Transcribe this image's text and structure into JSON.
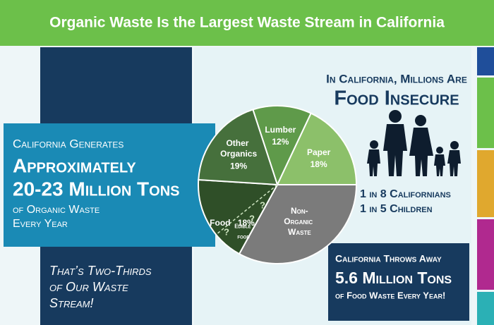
{
  "header": {
    "title": "Organic Waste Is the Largest Waste Stream in California"
  },
  "left_panel": {
    "lines": [
      "California Generates",
      "Approximately",
      "20-23 Million Tons",
      "of Organic Waste",
      "Every Year"
    ]
  },
  "bottom_left": {
    "lines": [
      "That’s Two-Thirds",
      "of Our Waste",
      "Stream!"
    ]
  },
  "right_panel": {
    "lines": [
      "In California, Millions Are",
      "Food Insecure"
    ],
    "stats": [
      "1 in 8 Californians",
      "1 in 5 Children"
    ]
  },
  "bottom_right": {
    "lines": [
      "California Throws Away",
      "5.6 Million Tons",
      "of Food Waste Every Year!"
    ]
  },
  "chart_data": {
    "type": "pie",
    "categories": [
      "Lumber",
      "Paper",
      "Non-Organic Waste",
      "Food",
      "Other Organics"
    ],
    "values": [
      12,
      18,
      33,
      18,
      19
    ],
    "value_labels": [
      "12%",
      "18%",
      null,
      "18%",
      "19%"
    ],
    "colors": [
      "#5f9a4a",
      "#8cc06a",
      "#7b7b7b",
      "#2f4f28",
      "#46703c"
    ],
    "annotations": [
      "Edible food",
      "?",
      "?",
      "?"
    ]
  }
}
